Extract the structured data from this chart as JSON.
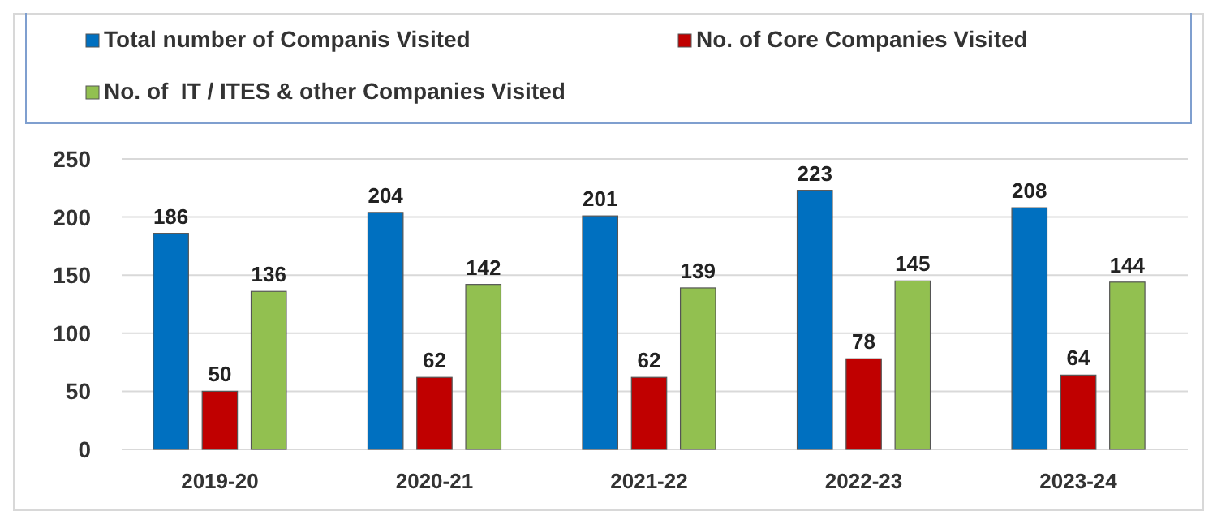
{
  "chart_data": {
    "type": "bar",
    "categories": [
      "2019-20",
      "2020-21",
      "2021-22",
      "2022-23",
      "2023-24"
    ],
    "series": [
      {
        "name": "Total number of Companis Visited",
        "color": "#0070c0",
        "values": [
          186,
          204,
          201,
          223,
          208
        ]
      },
      {
        "name": "No. of Core Companies Visited",
        "color": "#c00000",
        "values": [
          50,
          62,
          62,
          78,
          64
        ]
      },
      {
        "name": "No. of  IT / ITES & other Companies Visited",
        "color": "#92c050",
        "values": [
          136,
          142,
          139,
          145,
          144
        ]
      }
    ],
    "ylim": [
      0,
      250
    ],
    "yticks": [
      0,
      50,
      100,
      150,
      200,
      250
    ],
    "grid": "y",
    "legend": "top",
    "data_labels": true
  }
}
